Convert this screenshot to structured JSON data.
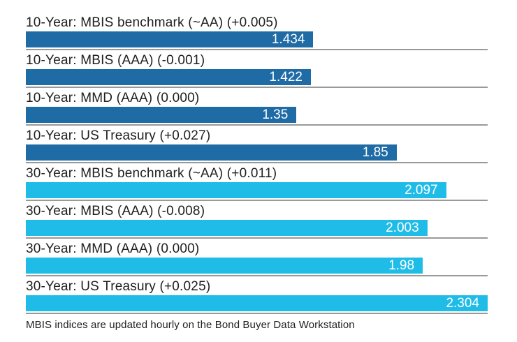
{
  "chart_data": {
    "type": "bar",
    "orientation": "horizontal",
    "title": "",
    "xlabel": "",
    "ylabel": "",
    "xlim": [
      0,
      2.304
    ],
    "grid": "row-separator-lines",
    "legend_position": "none",
    "value_label_position": "inside-right",
    "categories": [
      "10-Year: MBIS benchmark (~AA) (+0.005)",
      "10-Year: MBIS (AAA) (-0.001)",
      "10-Year: MMD (AAA) (0.000)",
      "10-Year: US Treasury (+0.027)",
      "30-Year: MBIS benchmark (~AA) (+0.011)",
      "30-Year: MBIS (AAA) (-0.008)",
      "30-Year: MMD (AAA) (0.000)",
      "30-Year: US Treasury (+0.025)"
    ],
    "values": [
      1.434,
      1.422,
      1.35,
      1.85,
      2.097,
      2.003,
      1.98,
      2.304
    ],
    "value_labels": [
      "1.434",
      "1.422",
      "1.35",
      "1.85",
      "2.097",
      "2.003",
      "1.98",
      "2.304"
    ],
    "bar_colors": [
      "#1f6ba5",
      "#1f6ba5",
      "#1f6ba5",
      "#1f6ba5",
      "#20bce8",
      "#20bce8",
      "#20bce8",
      "#20bce8"
    ],
    "groups": [
      {
        "name": "10-Year",
        "color": "#1f6ba5"
      },
      {
        "name": "30-Year",
        "color": "#20bce8"
      }
    ]
  },
  "footer": {
    "note": "MBIS indices are updated hourly on the Bond Buyer Data Workstation"
  },
  "colors": {
    "dark_blue": "#1f6ba5",
    "light_blue": "#20bce8",
    "separator_gray": "#999999",
    "label_text": "#1f1f1f",
    "value_text": "#ffffff",
    "background": "#ffffff"
  }
}
